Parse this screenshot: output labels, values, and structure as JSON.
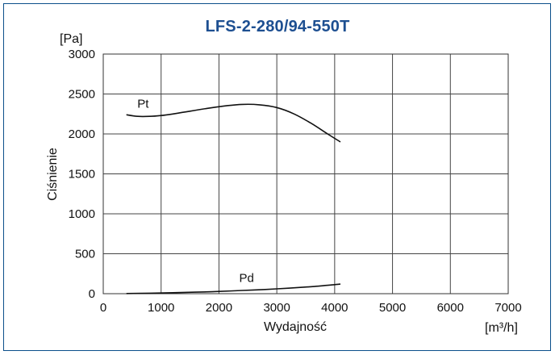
{
  "chart_data": {
    "type": "line",
    "title": "LFS-2-280/94-550T",
    "ylabel": "Ciśnienie",
    "yunit": "[Pa]",
    "xlabel": "Wydajność",
    "xunit": "[m³/h]",
    "xlim": [
      0,
      7000
    ],
    "ylim": [
      0,
      3000
    ],
    "xticks": [
      0,
      1000,
      2000,
      3000,
      4000,
      5000,
      6000,
      7000
    ],
    "yticks": [
      0,
      500,
      1000,
      1500,
      2000,
      2500,
      3000
    ],
    "grid": true,
    "series": [
      {
        "name": "Pt",
        "x": [
          400,
          600,
          800,
          1000,
          1200,
          1500,
          1800,
          2100,
          2400,
          2700,
          3000,
          3300,
          3600,
          3900,
          4100
        ],
        "y": [
          2240,
          2220,
          2220,
          2230,
          2250,
          2285,
          2320,
          2350,
          2370,
          2365,
          2330,
          2250,
          2130,
          1990,
          1900
        ]
      },
      {
        "name": "Pd",
        "x": [
          400,
          800,
          1200,
          1600,
          2000,
          2400,
          2800,
          3200,
          3600,
          4000,
          4100
        ],
        "y": [
          2,
          6,
          12,
          19,
          28,
          40,
          53,
          69,
          88,
          113,
          120
        ]
      }
    ],
    "label_positions_data": {
      "Pt": [
        590,
        2330
      ],
      "Pd": [
        2350,
        145
      ]
    },
    "colors": {
      "title": "#1d4f91",
      "border": "#0b4f8a",
      "line": "#111111",
      "grid": "#444444"
    }
  }
}
